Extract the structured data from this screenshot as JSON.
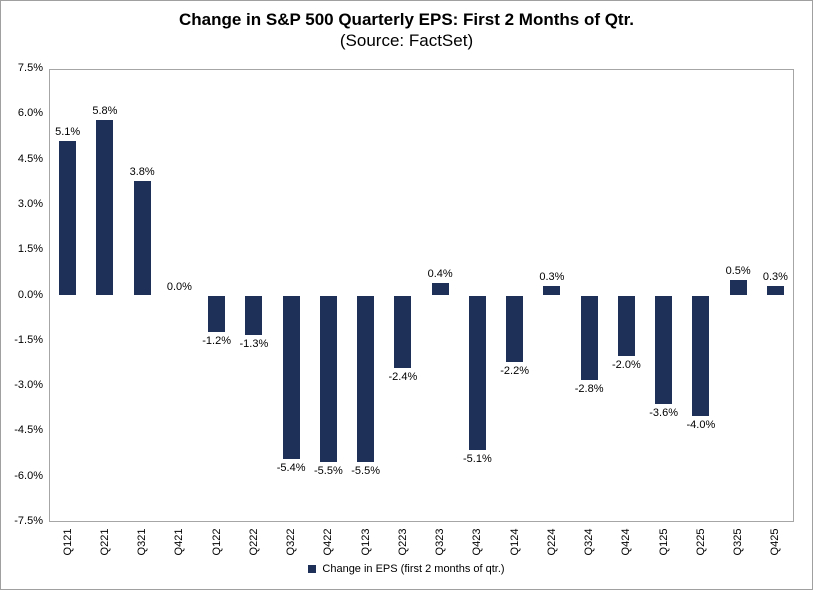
{
  "chart_data": {
    "type": "bar",
    "title": "Change in S&P 500 Quarterly EPS: First 2 Months of Qtr.",
    "subtitle": "(Source: FactSet)",
    "categories": [
      "Q121",
      "Q221",
      "Q321",
      "Q421",
      "Q122",
      "Q222",
      "Q322",
      "Q422",
      "Q123",
      "Q223",
      "Q323",
      "Q423",
      "Q124",
      "Q224",
      "Q324",
      "Q424",
      "Q125",
      "Q225",
      "Q325",
      "Q425"
    ],
    "values": [
      5.1,
      5.8,
      3.8,
      0.0,
      -1.2,
      -1.3,
      -5.4,
      -5.5,
      -5.5,
      -2.4,
      0.4,
      -5.1,
      -2.2,
      0.3,
      -2.8,
      -2.0,
      -3.6,
      -4.0,
      0.5,
      0.3
    ],
    "data_labels": [
      "5.1%",
      "5.8%",
      "3.8%",
      "0.0%",
      "-1.2%",
      "-1.3%",
      "-5.4%",
      "-5.5%",
      "-5.5%",
      "-2.4%",
      "0.4%",
      "-5.1%",
      "-2.2%",
      "0.3%",
      "-2.8%",
      "-2.0%",
      "-3.6%",
      "-4.0%",
      "0.5%",
      "0.3%"
    ],
    "series_name": "Change in EPS (first 2 months of qtr.)",
    "xlabel": "",
    "ylabel": "",
    "ylim": [
      -7.5,
      7.5
    ],
    "ytick_step": 1.5,
    "ytick_labels": [
      "7.5%",
      "6.0%",
      "4.5%",
      "3.0%",
      "1.5%",
      "0.0%",
      "-1.5%",
      "-3.0%",
      "-4.5%",
      "-6.0%",
      "-7.5%"
    ],
    "grid": true,
    "legend_position": "bottom",
    "bar_color": "#1F3058",
    "gridline_color": "#A9A9A9",
    "axis_border_color": "#A6A6A6"
  }
}
